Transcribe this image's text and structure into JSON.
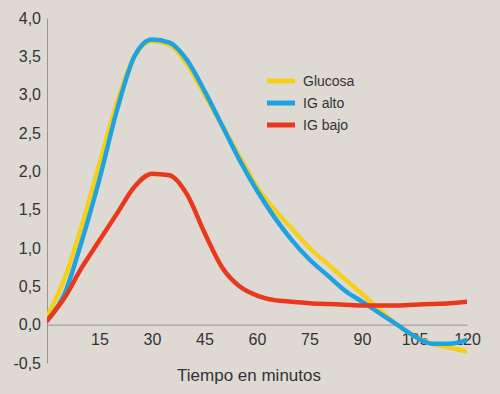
{
  "chart_data": {
    "type": "line",
    "x_label": "Tiempo en minutos",
    "x": [
      0,
      5,
      10,
      15,
      20,
      25,
      30,
      35,
      40,
      45,
      50,
      55,
      60,
      65,
      70,
      75,
      80,
      85,
      90,
      95,
      100,
      105,
      110,
      115,
      120
    ],
    "series": [
      {
        "name": "Glucosa",
        "color": "#f5cf1b",
        "values": [
          0.1,
          0.6,
          1.3,
          2.1,
          2.9,
          3.5,
          3.7,
          3.65,
          3.4,
          3.0,
          2.6,
          2.2,
          1.8,
          1.5,
          1.25,
          1.0,
          0.8,
          0.6,
          0.4,
          0.2,
          0.0,
          -0.15,
          -0.25,
          -0.3,
          -0.35
        ]
      },
      {
        "name": "IG alto",
        "color": "#1fa3e0",
        "values": [
          0.05,
          0.4,
          1.1,
          1.9,
          2.8,
          3.5,
          3.72,
          3.68,
          3.45,
          3.05,
          2.6,
          2.15,
          1.75,
          1.4,
          1.1,
          0.85,
          0.65,
          0.45,
          0.3,
          0.15,
          0.0,
          -0.15,
          -0.25,
          -0.25,
          -0.2
        ]
      },
      {
        "name": "IG bajo",
        "color": "#e8391d",
        "values": [
          0.05,
          0.35,
          0.75,
          1.1,
          1.45,
          1.8,
          1.97,
          1.95,
          1.7,
          1.2,
          0.75,
          0.5,
          0.38,
          0.32,
          0.3,
          0.28,
          0.27,
          0.26,
          0.25,
          0.25,
          0.25,
          0.26,
          0.27,
          0.28,
          0.3
        ]
      }
    ],
    "xlim": [
      0,
      120
    ],
    "xticks": [
      15,
      30,
      45,
      60,
      75,
      90,
      105,
      120
    ],
    "ylim": [
      -0.5,
      4.0
    ],
    "yticks": [
      {
        "value": -0.5,
        "label": "-0,5"
      },
      {
        "value": 0,
        "label": "0,0"
      },
      {
        "value": 0.5,
        "label": "0,5"
      },
      {
        "value": 1.0,
        "label": "1,0"
      },
      {
        "value": 1.5,
        "label": "1,5"
      },
      {
        "value": 2.0,
        "label": "2,0"
      },
      {
        "value": 2.5,
        "label": "2,5"
      },
      {
        "value": 3.0,
        "label": "3,0"
      },
      {
        "value": 3.5,
        "label": "3,5"
      },
      {
        "value": 4.0,
        "label": "4,0"
      }
    ],
    "grid": false,
    "legend": "top right"
  }
}
